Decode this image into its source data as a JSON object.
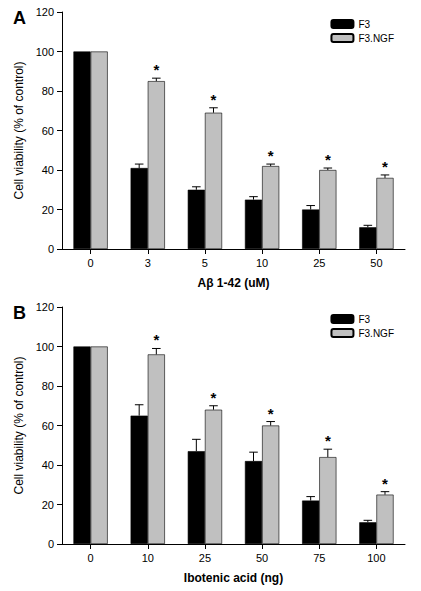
{
  "chart_data": [
    {
      "type": "bar",
      "label": "A",
      "x_label": "Aβ 1-42 (uM)",
      "y_label": "Cell viability (% of control)",
      "categories": [
        "0",
        "3",
        "5",
        "10",
        "25",
        "50"
      ],
      "series": [
        {
          "name": "F3",
          "color": "#000000",
          "values": [
            100,
            41,
            30,
            25,
            20,
            11
          ],
          "errors": [
            0,
            2,
            1.5,
            1.5,
            2,
            1
          ]
        },
        {
          "name": "F3.NGF",
          "color": "#c0c0c0",
          "values": [
            100,
            85,
            69,
            42,
            40,
            36
          ],
          "errors": [
            0,
            1.5,
            2.5,
            1,
            1,
            1.5
          ]
        }
      ],
      "annotations": [
        {
          "category": "3",
          "series": "F3.NGF",
          "text": "*"
        },
        {
          "category": "5",
          "series": "F3.NGF",
          "text": "*"
        },
        {
          "category": "10",
          "series": "F3.NGF",
          "text": "*"
        },
        {
          "category": "25",
          "series": "F3.NGF",
          "text": "*"
        },
        {
          "category": "50",
          "series": "F3.NGF",
          "text": "*"
        }
      ],
      "ylim": [
        0,
        120
      ],
      "yticks": [
        0,
        20,
        40,
        60,
        80,
        100,
        120
      ],
      "grid": false,
      "legend": "top right"
    },
    {
      "type": "bar",
      "label": "B",
      "x_label": "Ibotenic acid (ng)",
      "y_label": "Cell viability (% of control)",
      "categories": [
        "0",
        "10",
        "25",
        "50",
        "75",
        "100"
      ],
      "series": [
        {
          "name": "F3",
          "color": "#000000",
          "values": [
            100,
            65,
            47,
            42,
            22,
            11
          ],
          "errors": [
            0,
            5.5,
            6,
            4.5,
            2,
            1
          ]
        },
        {
          "name": "F3.NGF",
          "color": "#c0c0c0",
          "values": [
            100,
            96,
            68,
            60,
            44,
            25
          ],
          "errors": [
            0,
            3,
            2,
            2,
            4,
            1.5
          ]
        }
      ],
      "annotations": [
        {
          "category": "10",
          "series": "F3.NGF",
          "text": "*"
        },
        {
          "category": "25",
          "series": "F3.NGF",
          "text": "*"
        },
        {
          "category": "50",
          "series": "F3.NGF",
          "text": "*"
        },
        {
          "category": "75",
          "series": "F3.NGF",
          "text": "*"
        },
        {
          "category": "100",
          "series": "F3.NGF",
          "text": "*"
        }
      ],
      "ylim": [
        0,
        120
      ],
      "yticks": [
        0,
        20,
        40,
        60,
        80,
        100,
        120
      ],
      "grid": false,
      "legend": "top right"
    }
  ]
}
